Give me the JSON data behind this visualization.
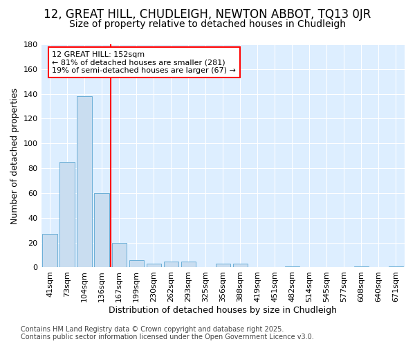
{
  "title1": "12, GREAT HILL, CHUDLEIGH, NEWTON ABBOT, TQ13 0JR",
  "title2": "Size of property relative to detached houses in Chudleigh",
  "xlabel": "Distribution of detached houses by size in Chudleigh",
  "ylabel": "Number of detached properties",
  "categories": [
    "41sqm",
    "73sqm",
    "104sqm",
    "136sqm",
    "167sqm",
    "199sqm",
    "230sqm",
    "262sqm",
    "293sqm",
    "325sqm",
    "356sqm",
    "388sqm",
    "419sqm",
    "451sqm",
    "482sqm",
    "514sqm",
    "545sqm",
    "577sqm",
    "608sqm",
    "640sqm",
    "671sqm"
  ],
  "values": [
    27,
    85,
    138,
    60,
    20,
    6,
    3,
    5,
    5,
    0,
    3,
    3,
    0,
    0,
    1,
    0,
    0,
    0,
    1,
    0,
    1
  ],
  "bar_color": "#c9ddf0",
  "bar_edgecolor": "#6aaed6",
  "vline_x": 3.5,
  "vline_color": "red",
  "annotation_line1": "12 GREAT HILL: 152sqm",
  "annotation_line2": "← 81% of detached houses are smaller (281)",
  "annotation_line3": "19% of semi-detached houses are larger (67) →",
  "annotation_box_color": "white",
  "annotation_box_edgecolor": "red",
  "ylim": [
    0,
    180
  ],
  "yticks": [
    0,
    20,
    40,
    60,
    80,
    100,
    120,
    140,
    160,
    180
  ],
  "bg_color": "#ffffff",
  "plot_bg_color": "#ddeeff",
  "grid_color": "#ffffff",
  "footer1": "Contains HM Land Registry data © Crown copyright and database right 2025.",
  "footer2": "Contains public sector information licensed under the Open Government Licence v3.0.",
  "title1_fontsize": 12,
  "title2_fontsize": 10,
  "tick_fontsize": 8,
  "xlabel_fontsize": 9,
  "ylabel_fontsize": 9,
  "annotation_fontsize": 8,
  "footer_fontsize": 7
}
